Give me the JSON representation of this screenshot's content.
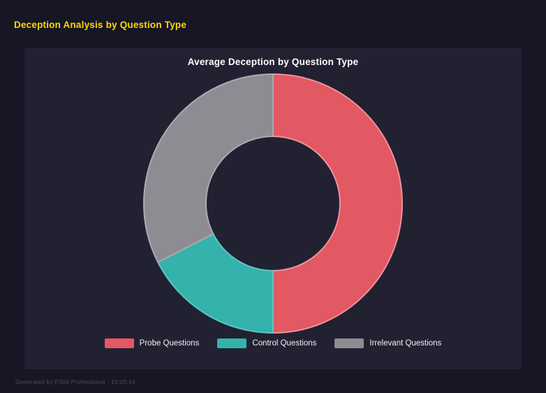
{
  "page": {
    "title": "Deception Analysis by Question Type",
    "footer": "Generated by P300 Professional - 10:05:14",
    "background": "#161624",
    "panel_background": "#212132",
    "title_color": "#ffd700"
  },
  "chart_data": {
    "type": "pie",
    "subtype": "donut",
    "title": "Average Deception by Question Type",
    "categories": [
      "Probe Questions",
      "Control Questions",
      "Irrelevant Questions"
    ],
    "values": [
      50,
      17.5,
      32.5
    ],
    "values_unit": "percent_share",
    "colors": [
      "#e25863",
      "#35b2ab",
      "#8c8c92"
    ],
    "edge_colors": [
      "#f0929a",
      "#5cc8c0",
      "#ababb1"
    ],
    "start_angle_deg": 0,
    "direction": "clockwise",
    "inner_radius_ratio": 0.52,
    "legend_position": "bottom",
    "grid": false
  }
}
